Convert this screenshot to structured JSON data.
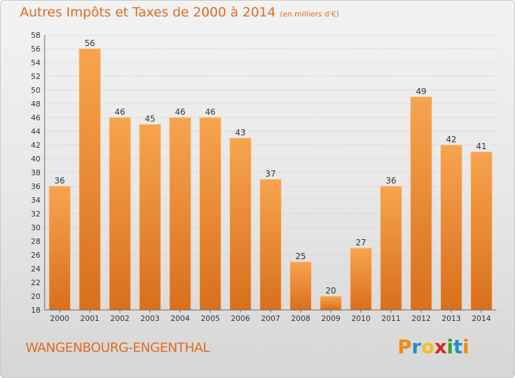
{
  "header": {
    "title": "Autres Impôts et Taxes de 2000 à 2014",
    "unit": "(en milliers d'€)"
  },
  "footer": {
    "commune": "WANGENBOURG-ENGENTHAL",
    "brand": "Proxiti"
  },
  "colors": {
    "accent": "#e36a1f",
    "bar_top": "#f7a44f",
    "bar_bottom": "#d86f1c",
    "logo_letters": [
      "#f08a16",
      "#1d8fd6",
      "#f0c21a",
      "#d22a2a",
      "#3aa02e",
      "#1d8fd6",
      "#f08a16"
    ]
  },
  "chart_data": {
    "type": "bar",
    "categories": [
      "2000",
      "2001",
      "2002",
      "2003",
      "2004",
      "2005",
      "2006",
      "2007",
      "2008",
      "2009",
      "2010",
      "2011",
      "2012",
      "2013",
      "2014"
    ],
    "values": [
      36,
      56,
      46,
      45,
      46,
      46,
      43,
      37,
      25,
      20,
      27,
      36,
      49,
      42,
      41
    ],
    "title": "Autres Impôts et Taxes de 2000 à 2014",
    "xlabel": "",
    "ylabel": "",
    "ylim": [
      18,
      58
    ],
    "yticks": [
      18,
      20,
      22,
      24,
      26,
      28,
      30,
      32,
      34,
      36,
      38,
      40,
      42,
      44,
      46,
      48,
      50,
      52,
      54,
      56,
      58
    ],
    "grid": true,
    "data_labels": true
  }
}
